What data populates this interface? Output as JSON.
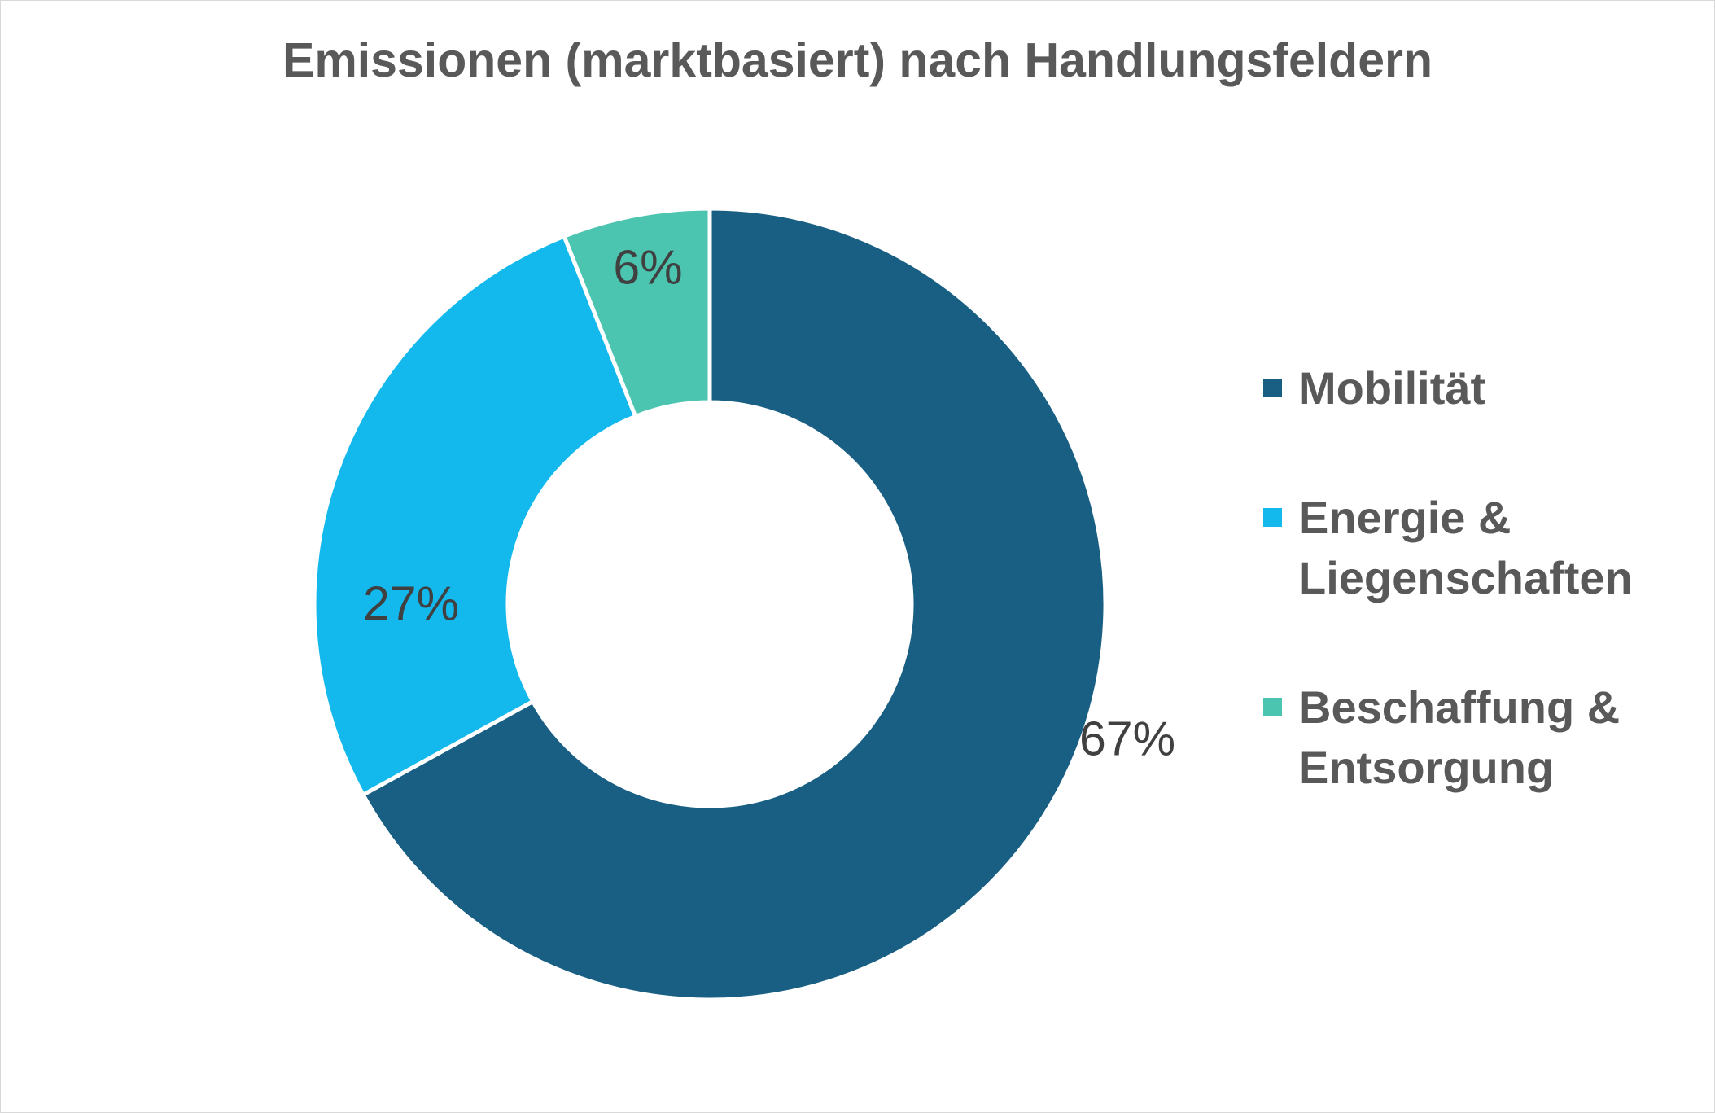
{
  "chart_data": {
    "type": "pie",
    "title": "Emissionen (marktbasiert) nach Handlungsfeldern",
    "donut": true,
    "legend_position": "right",
    "slices": [
      {
        "name": "Mobilität",
        "value": 67,
        "label": "67%",
        "color": "#185f83"
      },
      {
        "name": "Energie & Liegenschaften",
        "value": 27,
        "label": "27%",
        "color": "#13b9ed"
      },
      {
        "name": "Beschaffung & Entsorgung",
        "value": 6,
        "label": "6%",
        "color": "#4bc5b0"
      }
    ]
  }
}
